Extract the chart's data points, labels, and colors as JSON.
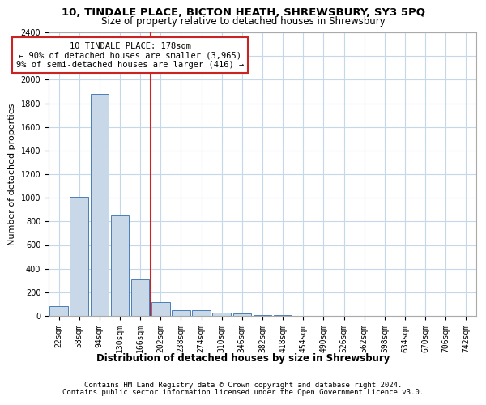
{
  "title1": "10, TINDALE PLACE, BICTON HEATH, SHREWSBURY, SY3 5PQ",
  "title2": "Size of property relative to detached houses in Shrewsbury",
  "xlabel": "Distribution of detached houses by size in Shrewsbury",
  "ylabel": "Number of detached properties",
  "footer1": "Contains HM Land Registry data © Crown copyright and database right 2024.",
  "footer2": "Contains public sector information licensed under the Open Government Licence v3.0.",
  "categories": [
    "22sqm",
    "58sqm",
    "94sqm",
    "130sqm",
    "166sqm",
    "202sqm",
    "238sqm",
    "274sqm",
    "310sqm",
    "346sqm",
    "382sqm",
    "418sqm",
    "454sqm",
    "490sqm",
    "526sqm",
    "562sqm",
    "598sqm",
    "634sqm",
    "670sqm",
    "706sqm",
    "742sqm"
  ],
  "values": [
    80,
    1010,
    1880,
    850,
    310,
    115,
    50,
    45,
    30,
    20,
    10,
    10,
    2,
    1,
    0,
    0,
    0,
    0,
    0,
    0,
    0
  ],
  "bar_color": "#c8d8e8",
  "bar_edge_color": "#4a7fb5",
  "vline_color": "#cc2222",
  "vline_xidx": 4.5,
  "annotation_line1": "10 TINDALE PLACE: 178sqm",
  "annotation_line2": "← 90% of detached houses are smaller (3,965)",
  "annotation_line3": "9% of semi-detached houses are larger (416) →",
  "annotation_box_color": "#ffffff",
  "annotation_box_edge": "#cc2222",
  "ylim": [
    0,
    2400
  ],
  "yticks": [
    0,
    200,
    400,
    600,
    800,
    1000,
    1200,
    1400,
    1600,
    1800,
    2000,
    2200,
    2400
  ],
  "bg_color": "#ffffff",
  "grid_color": "#c5d8ea",
  "title1_fontsize": 9.5,
  "title2_fontsize": 8.5,
  "xlabel_fontsize": 8.5,
  "ylabel_fontsize": 8,
  "tick_fontsize": 7,
  "annotation_fontsize": 7.5,
  "footer_fontsize": 6.5
}
